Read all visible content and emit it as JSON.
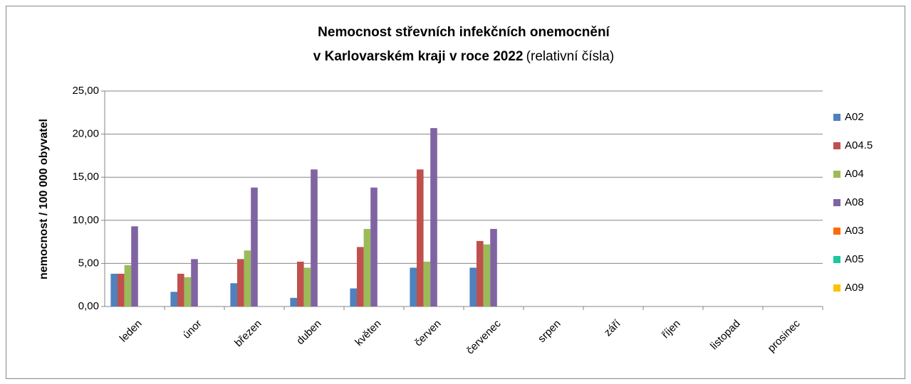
{
  "chart_data": {
    "type": "bar",
    "title": [
      "Nemocnost střevních infekčních onemocnění",
      "v Karlovarském kraji v roce 2022"
    ],
    "subtitle": "(relativní čísla)",
    "y_label": "nemocnost / 100 000 obyvatel",
    "categories": [
      "leden",
      "únor",
      "březen",
      "duben",
      "květen",
      "červen",
      "červenec",
      "srpen",
      "září",
      "říjen",
      "listopad",
      "prosinec"
    ],
    "series": [
      {
        "name": "A02",
        "color": "#4f81bd",
        "values": [
          3.8,
          1.7,
          2.7,
          1.0,
          2.1,
          4.5,
          4.5,
          null,
          null,
          null,
          null,
          null
        ]
      },
      {
        "name": "A04.5",
        "color": "#c0504d",
        "values": [
          3.8,
          3.8,
          5.5,
          5.2,
          6.9,
          15.9,
          7.6,
          null,
          null,
          null,
          null,
          null
        ]
      },
      {
        "name": "A04",
        "color": "#9bbb59",
        "values": [
          4.8,
          3.4,
          6.5,
          4.5,
          9.0,
          5.2,
          7.2,
          null,
          null,
          null,
          null,
          null
        ]
      },
      {
        "name": "A08",
        "color": "#8064a2",
        "values": [
          9.3,
          5.5,
          13.8,
          15.9,
          13.8,
          20.7,
          9.0,
          null,
          null,
          null,
          null,
          null
        ]
      },
      {
        "name": "A03",
        "color": "#ff6a00",
        "values": [
          0,
          0,
          0,
          0,
          0,
          0,
          0,
          null,
          null,
          null,
          null,
          null
        ]
      },
      {
        "name": "A05",
        "color": "#1bc7a0",
        "values": [
          0,
          0,
          0,
          0,
          0,
          0,
          0,
          null,
          null,
          null,
          null,
          null
        ]
      },
      {
        "name": "A09",
        "color": "#ffc000",
        "values": [
          0,
          0,
          0,
          0,
          0,
          0,
          0,
          null,
          null,
          null,
          null,
          null
        ]
      }
    ],
    "ylim": [
      0,
      25
    ],
    "yticks": [
      {
        "value": 0,
        "label": "0,00"
      },
      {
        "value": 5,
        "label": "5,00"
      },
      {
        "value": 10,
        "label": "10,00"
      },
      {
        "value": 15,
        "label": "15,00"
      },
      {
        "value": 20,
        "label": "20,00"
      },
      {
        "value": 25,
        "label": "25,00"
      }
    ],
    "grid": true,
    "legend": "right"
  }
}
